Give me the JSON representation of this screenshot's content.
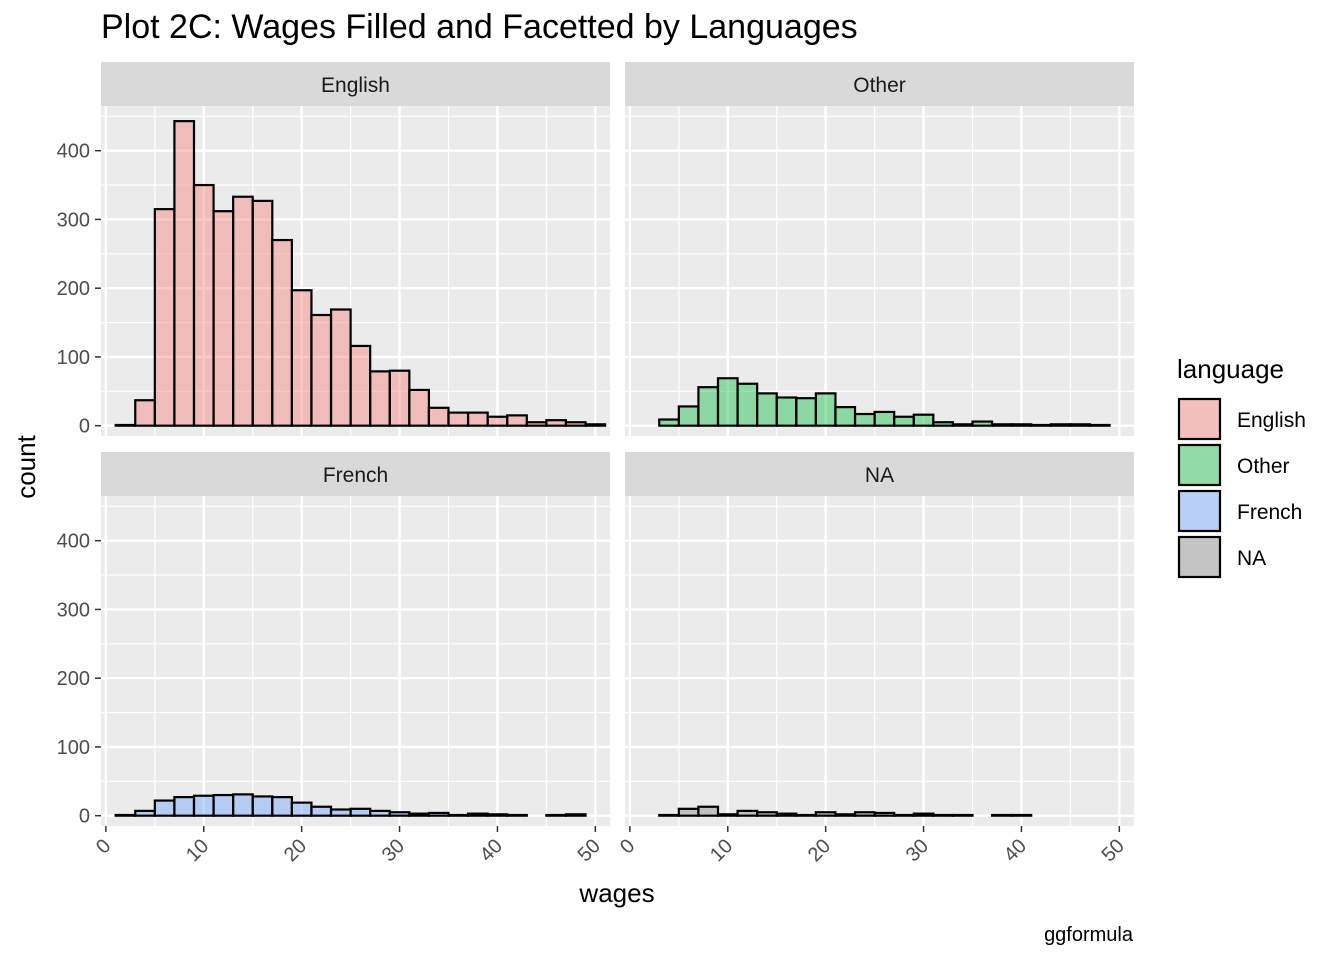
{
  "chart_data": {
    "type": "histogram",
    "title": "Plot 2C: Wages Filled and Facetted by Languages",
    "xlabel": "wages",
    "ylabel": "count",
    "caption": "ggformula",
    "xlim": [
      -0.5,
      51.5
    ],
    "ylim": [
      -15,
      465
    ],
    "x_ticks": [
      0,
      10,
      20,
      30,
      40,
      50
    ],
    "x_tick_labels": [
      "0",
      "10",
      "20",
      "30",
      "40",
      "50"
    ],
    "y_ticks": [
      0,
      100,
      200,
      300,
      400
    ],
    "y_tick_labels": [
      "0",
      "100",
      "200",
      "300",
      "400"
    ],
    "bins": {
      "start": 1,
      "width": 2,
      "count": 25
    },
    "legend": {
      "title": "language",
      "position": "right",
      "entries": [
        {
          "label": "English",
          "color": "#F8766D"
        },
        {
          "label": "Other",
          "color": "#00BA38"
        },
        {
          "label": "French",
          "color": "#619CFF"
        },
        {
          "label": "NA",
          "color": "#808080"
        }
      ]
    },
    "facets": [
      {
        "label": "English",
        "fill": "#F8766D",
        "counts": [
          1,
          37,
          315,
          443,
          350,
          312,
          333,
          327,
          270,
          197,
          161,
          169,
          116,
          79,
          80,
          52,
          26,
          19,
          19,
          13,
          15,
          5,
          8,
          5,
          2
        ]
      },
      {
        "label": "Other",
        "fill": "#00BA38",
        "counts": [
          0,
          9,
          28,
          56,
          69,
          61,
          47,
          41,
          40,
          47,
          27,
          17,
          20,
          13,
          16,
          5,
          2,
          6,
          2,
          2,
          1,
          2,
          2,
          1,
          0
        ]
      },
      {
        "label": "French",
        "fill": "#619CFF",
        "counts": [
          1,
          7,
          22,
          27,
          29,
          30,
          31,
          28,
          27,
          19,
          13,
          9,
          10,
          7,
          5,
          3,
          4,
          1,
          3,
          2,
          1,
          0,
          1,
          2,
          0
        ]
      },
      {
        "label": "NA",
        "fill": "#808080",
        "counts": [
          0,
          1,
          10,
          13,
          2,
          7,
          5,
          3,
          1,
          5,
          2,
          5,
          4,
          1,
          3,
          1,
          1,
          0,
          1,
          1,
          0,
          0,
          0,
          0,
          0
        ]
      }
    ]
  }
}
